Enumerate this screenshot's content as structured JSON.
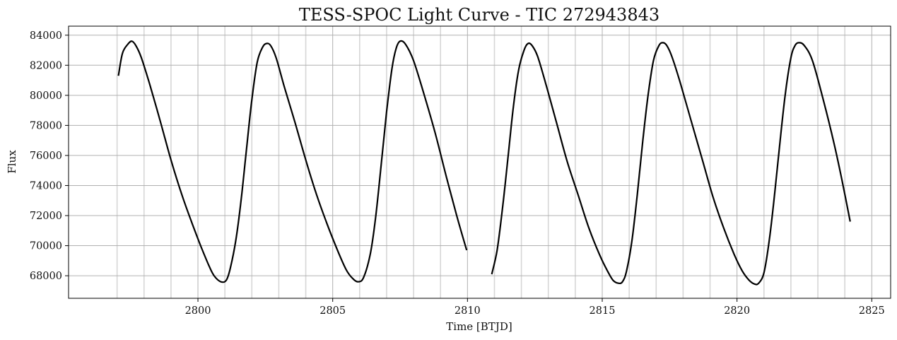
{
  "chart_data": {
    "type": "line",
    "title": "TESS-SPOC Light Curve - TIC 272943843",
    "xlabel": "Time [BTJD]",
    "ylabel": "Flux",
    "xlim": [
      2795.2,
      2825.7
    ],
    "ylim": [
      66500,
      84600
    ],
    "x_ticks": [
      2800,
      2805,
      2810,
      2815,
      2820,
      2825
    ],
    "x_tick_labels": [
      "2800",
      "2805",
      "2810",
      "2815",
      "2820",
      "2825"
    ],
    "x_minor_ticks": [
      2797,
      2798,
      2799,
      2801,
      2802,
      2803,
      2804,
      2806,
      2807,
      2808,
      2809,
      2811,
      2812,
      2813,
      2814,
      2816,
      2817,
      2818,
      2819,
      2821,
      2822,
      2823,
      2824
    ],
    "y_ticks": [
      68000,
      70000,
      72000,
      74000,
      76000,
      78000,
      80000,
      82000,
      84000
    ],
    "y_tick_labels": [
      "68000",
      "70000",
      "72000",
      "74000",
      "76000",
      "78000",
      "80000",
      "82000",
      "84000"
    ],
    "grid": true,
    "series": [
      {
        "color": "#000000",
        "segments": [
          {
            "x": [
              2797.05,
              2797.2,
              2797.4,
              2797.55,
              2797.7,
              2797.9,
              2798.2,
              2798.6,
              2799.0,
              2799.4,
              2799.8,
              2800.1,
              2800.4,
              2800.6,
              2800.85,
              2801.05,
              2801.2,
              2801.4,
              2801.6,
              2801.8,
              2802.0,
              2802.2,
              2802.4,
              2802.55,
              2802.7,
              2802.9,
              2803.2,
              2803.6,
              2804.0,
              2804.4,
              2804.8,
              2805.2,
              2805.5,
              2805.75,
              2805.95,
              2806.15,
              2806.4,
              2806.6,
              2806.8,
              2807.0,
              2807.2,
              2807.35,
              2807.5,
              2807.7,
              2808.0,
              2808.4,
              2808.8,
              2809.2,
              2809.6,
              2809.97
            ],
            "y": [
              81300,
              82800,
              83400,
              83600,
              83300,
              82500,
              80800,
              78300,
              75700,
              73400,
              71400,
              70000,
              68700,
              68000,
              67600,
              67700,
              68500,
              70300,
              73000,
              76400,
              79700,
              82200,
              83200,
              83450,
              83300,
              82500,
              80600,
              78200,
              75700,
              73400,
              71400,
              69600,
              68400,
              67800,
              67600,
              67900,
              69500,
              72000,
              75400,
              78900,
              81800,
              83100,
              83600,
              83400,
              82300,
              80000,
              77500,
              74700,
              72000,
              69700
            ]
          },
          {
            "x": [
              2810.9,
              2811.1,
              2811.3,
              2811.5,
              2811.7,
              2811.9,
              2812.1,
              2812.25,
              2812.4,
              2812.6,
              2812.9,
              2813.3,
              2813.7,
              2814.1,
              2814.5,
              2814.9,
              2815.2,
              2815.4,
              2815.6,
              2815.75,
              2815.9,
              2816.1,
              2816.3,
              2816.5,
              2816.7,
              2816.9,
              2817.1,
              2817.25,
              2817.4,
              2817.6,
              2817.9,
              2818.3,
              2818.7,
              2819.1,
              2819.5,
              2819.9,
              2820.2,
              2820.45,
              2820.65,
              2820.8,
              2821.0,
              2821.2,
              2821.4,
              2821.6,
              2821.8,
              2822.0,
              2822.15,
              2822.3,
              2822.5,
              2822.8,
              2823.2,
              2823.6,
              2823.9,
              2824.2
            ],
            "y": [
              68100,
              69700,
              72500,
              75800,
              79200,
              81700,
              83000,
              83450,
              83300,
              82600,
              80800,
              78200,
              75600,
              73400,
              71200,
              69400,
              68300,
              67700,
              67500,
              67600,
              68300,
              70300,
              73400,
              76900,
              80000,
              82300,
              83300,
              83500,
              83300,
              82500,
              80800,
              78300,
              75800,
              73300,
              71200,
              69400,
              68300,
              67700,
              67450,
              67500,
              68200,
              70400,
              73500,
              77000,
              80200,
              82500,
              83300,
              83500,
              83300,
              82300,
              79700,
              76800,
              74300,
              71600
            ]
          }
        ]
      }
    ]
  }
}
